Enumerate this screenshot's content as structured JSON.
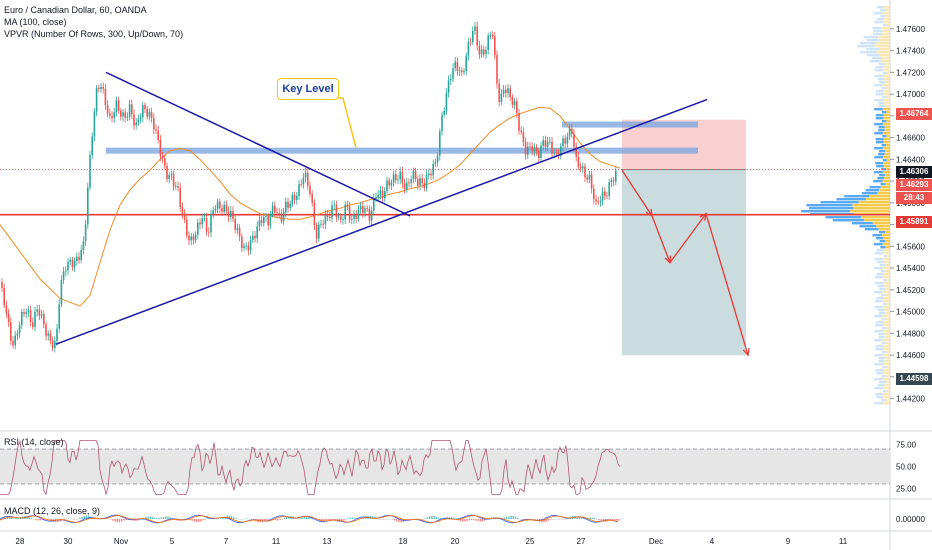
{
  "legend": {
    "symbol": "Euro / Canadian Dollar, 60, OANDA",
    "ma": "MA (100, close)",
    "vpvr": "VPVR (Number Of Rows, 300, Up/Down, 70)"
  },
  "annotation": {
    "key_level": "Key Level"
  },
  "price_tags": [
    {
      "label": "1.46764",
      "color": "#ef5350"
    },
    {
      "label": "1.46306",
      "color": "#131722"
    },
    {
      "label": "1.46293",
      "color": "#ef5350"
    },
    {
      "label": "28:43",
      "color": "#ef5350"
    },
    {
      "label": "1.45891",
      "color": "#e53935"
    },
    {
      "label": "1.44598",
      "color": "#37474f"
    }
  ],
  "rsi_legend": "RSI (14, close)",
  "macd_legend": "MACD (12, 26, close, 9)",
  "colors": {
    "up": "#26a69a",
    "down": "#ef5350",
    "ma": "#f28c28",
    "trend": "#1a1aa6",
    "support": "#e53935",
    "zone": "#7ea6e0"
  },
  "chart_data": [
    {
      "type": "candlestick",
      "title": "Euro / Canadian Dollar, 60, OANDA",
      "y_ticks": [
        "1.47600",
        "1.47400",
        "1.47200",
        "1.47000",
        "1.46800",
        "1.46600",
        "1.46400",
        "1.46200",
        "1.46000",
        "1.45800",
        "1.45600",
        "1.45400",
        "1.45200",
        "1.45000",
        "1.44800",
        "1.44600",
        "1.44400",
        "1.44200"
      ],
      "x_ticks": [
        "28",
        "30",
        "Nov",
        "5",
        "7",
        "11",
        "13",
        "18",
        "20",
        "25",
        "27",
        "Dec",
        "4",
        "9",
        "11"
      ],
      "ylim": [
        1.4415,
        1.477
      ],
      "close_path": [
        [
          0,
          1.4527
        ],
        [
          6,
          1.4505
        ],
        [
          10,
          1.448
        ],
        [
          14,
          1.447
        ],
        [
          20,
          1.449
        ],
        [
          26,
          1.45
        ],
        [
          32,
          1.4485
        ],
        [
          38,
          1.4505
        ],
        [
          44,
          1.449
        ],
        [
          50,
          1.4475
        ],
        [
          56,
          1.447
        ],
        [
          60,
          1.452
        ],
        [
          66,
          1.454
        ],
        [
          76,
          1.4545
        ],
        [
          84,
          1.4565
        ],
        [
          88,
          1.462
        ],
        [
          92,
          1.4665
        ],
        [
          96,
          1.47
        ],
        [
          100,
          1.471
        ],
        [
          104,
          1.4695
        ],
        [
          110,
          1.4672
        ],
        [
          116,
          1.469
        ],
        [
          124,
          1.468
        ],
        [
          130,
          1.469
        ],
        [
          136,
          1.467
        ],
        [
          142,
          1.4685
        ],
        [
          148,
          1.468
        ],
        [
          154,
          1.467
        ],
        [
          160,
          1.465
        ],
        [
          166,
          1.463
        ],
        [
          172,
          1.4625
        ],
        [
          178,
          1.461
        ],
        [
          184,
          1.458
        ],
        [
          190,
          1.456
        ],
        [
          196,
          1.4572
        ],
        [
          202,
          1.459
        ],
        [
          208,
          1.4575
        ],
        [
          214,
          1.46
        ],
        [
          220,
          1.4595
        ],
        [
          226,
          1.459
        ],
        [
          232,
          1.4585
        ],
        [
          238,
          1.4572
        ],
        [
          244,
          1.456
        ],
        [
          250,
          1.4565
        ],
        [
          256,
          1.4575
        ],
        [
          262,
          1.4585
        ],
        [
          268,
          1.458
        ],
        [
          274,
          1.4595
        ],
        [
          280,
          1.4585
        ],
        [
          286,
          1.46
        ],
        [
          292,
          1.4605
        ],
        [
          298,
          1.461
        ],
        [
          304,
          1.4625
        ],
        [
          310,
          1.4608
        ],
        [
          316,
          1.4568
        ],
        [
          322,
          1.4585
        ],
        [
          328,
          1.459
        ],
        [
          334,
          1.46
        ],
        [
          340,
          1.458
        ],
        [
          346,
          1.4595
        ],
        [
          352,
          1.458
        ],
        [
          358,
          1.4592
        ],
        [
          364,
          1.4598
        ],
        [
          370,
          1.459
        ],
        [
          376,
          1.461
        ],
        [
          382,
          1.4605
        ],
        [
          388,
          1.4615
        ],
        [
          394,
          1.462
        ],
        [
          400,
          1.4625
        ],
        [
          406,
          1.4615
        ],
        [
          412,
          1.463
        ],
        [
          418,
          1.462
        ],
        [
          424,
          1.4615
        ],
        [
          430,
          1.4625
        ],
        [
          436,
          1.4635
        ],
        [
          442,
          1.468
        ],
        [
          446,
          1.47
        ],
        [
          450,
          1.472
        ],
        [
          456,
          1.473
        ],
        [
          462,
          1.4715
        ],
        [
          468,
          1.474
        ],
        [
          474,
          1.476
        ],
        [
          480,
          1.4735
        ],
        [
          486,
          1.4745
        ],
        [
          492,
          1.4765
        ],
        [
          496,
          1.472
        ],
        [
          500,
          1.469
        ],
        [
          504,
          1.4705
        ],
        [
          510,
          1.4695
        ],
        [
          516,
          1.4685
        ],
        [
          520,
          1.4665
        ],
        [
          526,
          1.465
        ],
        [
          532,
          1.4655
        ],
        [
          538,
          1.4645
        ],
        [
          544,
          1.4655
        ],
        [
          550,
          1.465
        ],
        [
          556,
          1.464
        ],
        [
          562,
          1.4655
        ],
        [
          568,
          1.4665
        ],
        [
          572,
          1.467
        ],
        [
          576,
          1.464
        ],
        [
          580,
          1.4635
        ],
        [
          584,
          1.4625
        ],
        [
          590,
          1.4618
        ],
        [
          596,
          1.4595
        ],
        [
          600,
          1.4605
        ],
        [
          606,
          1.461
        ],
        [
          612,
          1.4625
        ],
        [
          618,
          1.463
        ]
      ],
      "ma_path": [
        [
          0,
          1.458
        ],
        [
          20,
          1.4555
        ],
        [
          40,
          1.453
        ],
        [
          60,
          1.4512
        ],
        [
          80,
          1.4505
        ],
        [
          90,
          1.4515
        ],
        [
          100,
          1.4545
        ],
        [
          110,
          1.4575
        ],
        [
          120,
          1.4598
        ],
        [
          130,
          1.4612
        ],
        [
          140,
          1.4622
        ],
        [
          150,
          1.463
        ],
        [
          160,
          1.464
        ],
        [
          170,
          1.4648
        ],
        [
          180,
          1.465
        ],
        [
          190,
          1.4648
        ],
        [
          200,
          1.464
        ],
        [
          210,
          1.463
        ],
        [
          220,
          1.462
        ],
        [
          230,
          1.4608
        ],
        [
          240,
          1.46
        ],
        [
          250,
          1.4595
        ],
        [
          260,
          1.459
        ],
        [
          270,
          1.4588
        ],
        [
          280,
          1.4586
        ],
        [
          290,
          1.4585
        ],
        [
          300,
          1.4585
        ],
        [
          310,
          1.4587
        ],
        [
          320,
          1.459
        ],
        [
          330,
          1.4593
        ],
        [
          340,
          1.4595
        ],
        [
          350,
          1.4598
        ],
        [
          360,
          1.46
        ],
        [
          370,
          1.4603
        ],
        [
          380,
          1.4605
        ],
        [
          390,
          1.4608
        ],
        [
          400,
          1.461
        ],
        [
          410,
          1.4613
        ],
        [
          420,
          1.4615
        ],
        [
          430,
          1.4618
        ],
        [
          440,
          1.4622
        ],
        [
          450,
          1.4628
        ],
        [
          460,
          1.4635
        ],
        [
          470,
          1.4645
        ],
        [
          480,
          1.4655
        ],
        [
          490,
          1.4665
        ],
        [
          500,
          1.4672
        ],
        [
          510,
          1.4678
        ],
        [
          520,
          1.4682
        ],
        [
          530,
          1.4685
        ],
        [
          540,
          1.4688
        ],
        [
          550,
          1.4687
        ],
        [
          560,
          1.468
        ],
        [
          570,
          1.4668
        ],
        [
          580,
          1.4655
        ],
        [
          590,
          1.4645
        ],
        [
          600,
          1.4638
        ],
        [
          610,
          1.4635
        ],
        [
          620,
          1.4632
        ]
      ],
      "levels": {
        "key_level": 1.4648,
        "resistance_zone_right": 1.4672,
        "support": 1.45891,
        "stop": 1.46764,
        "entry": 1.46306,
        "target": 1.44598
      },
      "trendlines": [
        {
          "name": "descending",
          "from": [
            106,
            1.472
          ],
          "to": [
            410,
            1.4588
          ]
        },
        {
          "name": "ascending",
          "from": [
            56,
            1.447
          ],
          "to": [
            707,
            1.4695
          ]
        }
      ],
      "projection": [
        [
          622,
          1.463
        ],
        [
          652,
          1.4588
        ],
        [
          670,
          1.4545
        ],
        [
          706,
          1.459
        ],
        [
          748,
          1.446
        ]
      ]
    },
    {
      "type": "line",
      "title": "RSI (14, close)",
      "y_ticks": [
        "75.00",
        "50.00",
        "25.00"
      ],
      "ylim": [
        15,
        85
      ],
      "band": [
        30,
        70
      ]
    },
    {
      "type": "line",
      "title": "MACD (12, 26, close, 9)",
      "y_ticks": [
        "0.00000"
      ]
    }
  ]
}
